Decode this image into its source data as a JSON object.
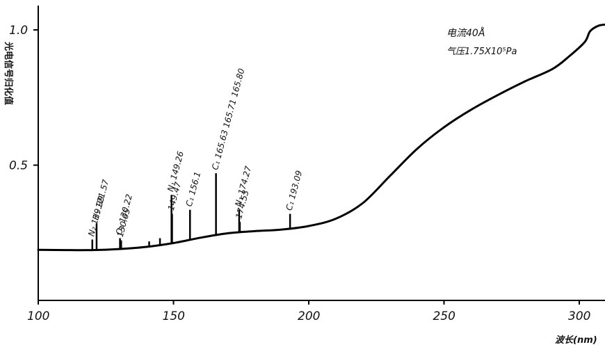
{
  "chart_data": {
    "type": "line",
    "title": "",
    "xlabel": "波长(nm)",
    "ylabel": "光电信号归化值",
    "xlim": [
      100,
      310
    ],
    "ylim": [
      0,
      1.08
    ],
    "x_ticks": [
      100,
      150,
      200,
      250,
      300
    ],
    "x_tick_labels": [
      "100",
      "150",
      "200",
      "250",
      "300"
    ],
    "y_ticks": [
      0.5,
      1.0
    ],
    "y_tick_labels": [
      "0.5",
      "1.0"
    ],
    "grid": false,
    "legend": "none",
    "annotations": [
      "电流40Å",
      "气压1.75X10⁵Pa"
    ],
    "series": [
      {
        "values_xy": [
          [
            100,
            0.187
          ],
          [
            110,
            0.186
          ],
          [
            120,
            0.186
          ],
          [
            130,
            0.19
          ],
          [
            140,
            0.198
          ],
          [
            150,
            0.212
          ],
          [
            160,
            0.232
          ],
          [
            170,
            0.248
          ],
          [
            180,
            0.256
          ],
          [
            190,
            0.262
          ],
          [
            200,
            0.275
          ],
          [
            210,
            0.302
          ],
          [
            220,
            0.36
          ],
          [
            230,
            0.46
          ],
          [
            240,
            0.56
          ],
          [
            250,
            0.64
          ],
          [
            260,
            0.705
          ],
          [
            270,
            0.76
          ],
          [
            280,
            0.81
          ],
          [
            290,
            0.855
          ],
          [
            296,
            0.9
          ],
          [
            302,
            0.955
          ],
          [
            304,
            0.995
          ],
          [
            307,
            1.015
          ],
          [
            310,
            1.02
          ]
        ]
      }
    ],
    "peaks": [
      {
        "x": 119.99,
        "top": 0.225,
        "label": "N₂ 119.99"
      },
      {
        "x": 121.57,
        "top": 0.285,
        "label": "H₁ 121.57"
      },
      {
        "x": 130.22,
        "top": 0.23,
        "label": "O₁ 130.22"
      },
      {
        "x": 130.65,
        "top": 0.222,
        "label": "130.65"
      },
      {
        "x": 141.0,
        "top": 0.218,
        "label": ""
      },
      {
        "x": 145.0,
        "top": 0.23,
        "label": ""
      },
      {
        "x": 149.26,
        "top": 0.39,
        "label": "N₁ 149.26"
      },
      {
        "x": 149.47,
        "top": 0.32,
        "label": "149.47"
      },
      {
        "x": 156.1,
        "top": 0.335,
        "label": "C₁ 156.1"
      },
      {
        "x": 165.71,
        "top": 0.47,
        "label": "C₁ 165.63 165.71 165.80"
      },
      {
        "x": 174.27,
        "top": 0.335,
        "label": "N₁ 174.27"
      },
      {
        "x": 174.53,
        "top": 0.29,
        "label": "174.53"
      },
      {
        "x": 193.09,
        "top": 0.32,
        "label": "C₁ 193.09"
      }
    ]
  }
}
